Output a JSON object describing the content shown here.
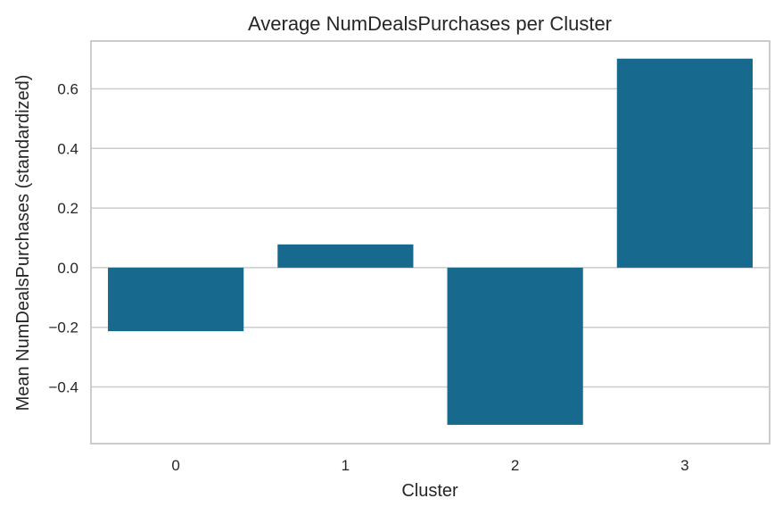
{
  "chart_data": {
    "type": "bar",
    "title": "Average NumDealsPurchases per Cluster",
    "xlabel": "Cluster",
    "ylabel": "Mean NumDealsPurchases (standardized)",
    "categories": [
      "0",
      "1",
      "2",
      "3"
    ],
    "values": [
      -0.213,
      0.078,
      -0.527,
      0.701
    ],
    "ylim": [
      -0.59,
      0.76
    ],
    "yticks": [
      -0.4,
      -0.2,
      0.0,
      0.2,
      0.4,
      0.6
    ],
    "ytick_labels": [
      "−0.4",
      "−0.2",
      "0.0",
      "0.2",
      "0.4",
      "0.6"
    ],
    "bar_color": "#17698e",
    "grid": true,
    "grid_axis": "y"
  }
}
